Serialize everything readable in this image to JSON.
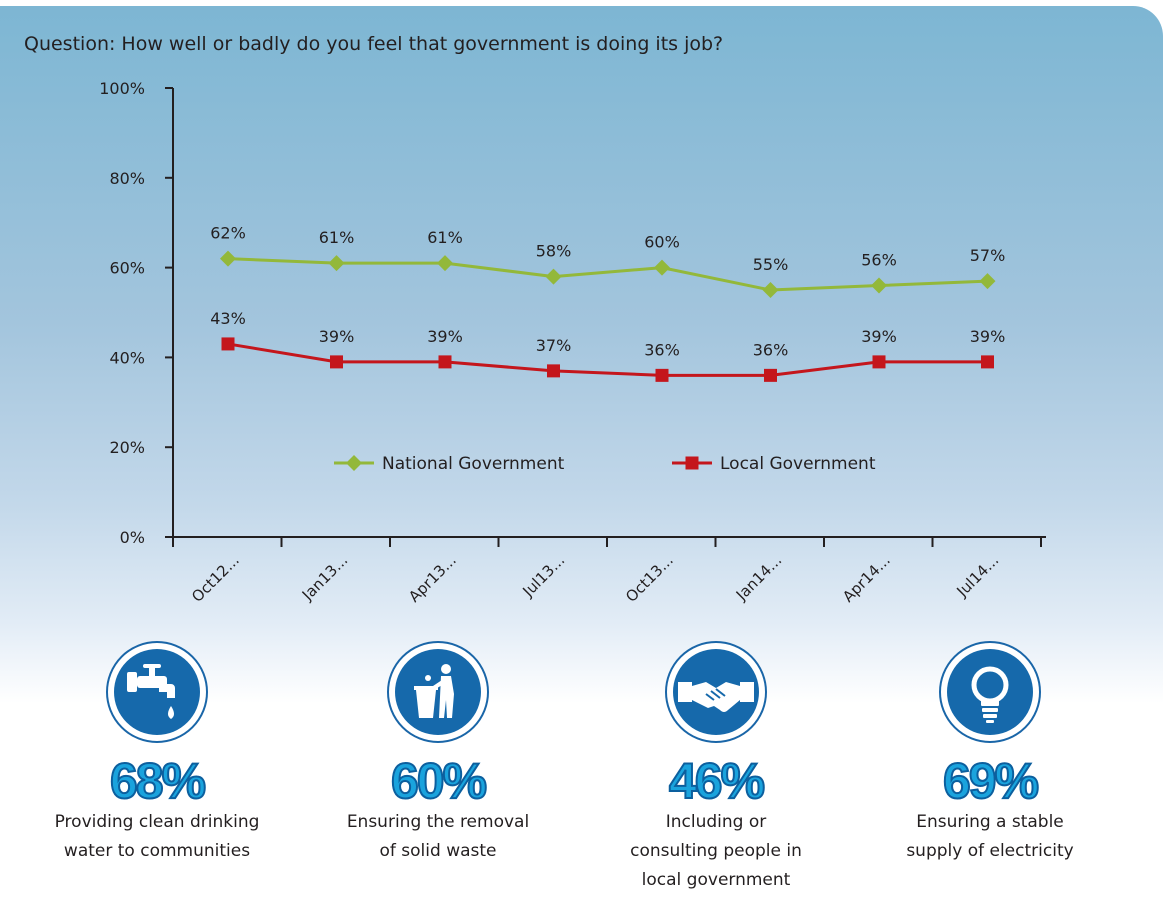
{
  "question": "Question: How well or badly do you feel that government is doing its job?",
  "chart_data": {
    "type": "line",
    "categories": [
      "Oct12...",
      "Jan13...",
      "Apr13...",
      "Jul13...",
      "Oct13...",
      "Jan14...",
      "Apr14...",
      "Jul14..."
    ],
    "series": [
      {
        "name": "National Government",
        "values": [
          62,
          61,
          61,
          58,
          60,
          55,
          56,
          57
        ],
        "color": "#93b83a",
        "marker": "diamond"
      },
      {
        "name": "Local Government",
        "values": [
          43,
          39,
          39,
          37,
          36,
          36,
          39,
          39
        ],
        "color": "#c4161c",
        "marker": "square"
      }
    ],
    "y_ticks": [
      "0%",
      "20%",
      "40%",
      "60%",
      "80%",
      "100%"
    ],
    "ylim": [
      0,
      100
    ],
    "grid": false,
    "legend_position": "inside-bottom"
  },
  "stats": [
    {
      "value": "68%",
      "label_lines": [
        "Providing clean drinking",
        "water to communities"
      ],
      "icon": "water-tap-icon"
    },
    {
      "value": "60%",
      "label_lines": [
        "Ensuring the removal",
        "of solid waste"
      ],
      "icon": "trash-bin-icon"
    },
    {
      "value": "46%",
      "label_lines": [
        "Including or",
        "consulting people in",
        "local government"
      ],
      "icon": "handshake-icon"
    },
    {
      "value": "69%",
      "label_lines": [
        "Ensuring a stable",
        "supply of electricity"
      ],
      "icon": "light-bulb-icon"
    }
  ]
}
